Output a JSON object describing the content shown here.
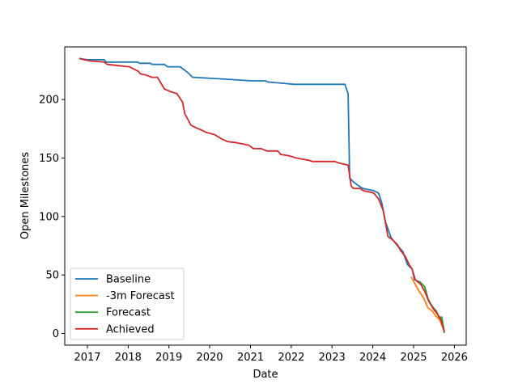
{
  "chart_data": {
    "type": "line",
    "title": "",
    "xlabel": "Date",
    "ylabel": "Open Milestones",
    "xlim": [
      "2016-06-12",
      "2026-04-17"
    ],
    "ylim": [
      -10,
      245
    ],
    "x_ticks": [
      "2017",
      "2018",
      "2019",
      "2020",
      "2021",
      "2022",
      "2023",
      "2024",
      "2025",
      "2026"
    ],
    "y_ticks": [
      0,
      50,
      100,
      150,
      200
    ],
    "grid": false,
    "legend_position": "lower-left",
    "series": [
      {
        "name": "Baseline",
        "color": "#1f77b4",
        "points": [
          [
            "2016-10-27",
            235
          ],
          [
            "2016-12-29",
            234
          ],
          [
            "2017-06-01",
            234
          ],
          [
            "2017-06-15",
            232
          ],
          [
            "2018-03-29",
            232
          ],
          [
            "2018-04-12",
            231
          ],
          [
            "2018-07-19",
            231
          ],
          [
            "2018-08-02",
            230
          ],
          [
            "2018-11-22",
            230
          ],
          [
            "2018-12-20",
            228
          ],
          [
            "2019-04-11",
            228
          ],
          [
            "2019-06-20",
            223
          ],
          [
            "2019-08-01",
            219
          ],
          [
            "2020-07-30",
            217
          ],
          [
            "2021-01-14",
            216
          ],
          [
            "2021-05-20",
            216
          ],
          [
            "2021-06-03",
            215
          ],
          [
            "2021-10-07",
            214
          ],
          [
            "2022-01-27",
            213
          ],
          [
            "2023-04-27",
            213
          ],
          [
            "2023-05-25",
            205
          ],
          [
            "2023-06-08",
            133
          ],
          [
            "2023-07-06",
            130
          ],
          [
            "2023-08-03",
            128
          ],
          [
            "2023-08-31",
            126
          ],
          [
            "2023-10-05",
            124
          ],
          [
            "2024-01-11",
            122
          ],
          [
            "2024-02-22",
            120
          ],
          [
            "2024-03-21",
            112
          ],
          [
            "2024-04-25",
            95
          ],
          [
            "2024-06-13",
            82
          ],
          [
            "2024-08-01",
            76
          ],
          [
            "2024-09-26",
            70
          ],
          [
            "2024-11-07",
            59
          ],
          [
            "2024-12-19",
            55
          ],
          [
            "2025-01-09",
            46
          ],
          [
            "2025-02-27",
            44
          ],
          [
            "2025-04-10",
            40
          ],
          [
            "2025-05-08",
            30
          ],
          [
            "2025-05-29",
            26
          ],
          [
            "2025-06-26",
            22
          ],
          [
            "2025-07-24",
            19
          ],
          [
            "2025-08-14",
            14
          ],
          [
            "2025-09-11",
            12
          ],
          [
            "2025-10-02",
            2
          ]
        ]
      },
      {
        "name": "-3m Forecast",
        "color": "#ff7f0e",
        "points": [
          [
            "2024-12-12",
            48
          ],
          [
            "2025-01-16",
            42
          ],
          [
            "2025-02-20",
            36
          ],
          [
            "2025-04-03",
            30
          ],
          [
            "2025-05-08",
            22
          ],
          [
            "2025-06-19",
            19
          ],
          [
            "2025-07-17",
            15
          ],
          [
            "2025-08-21",
            12
          ],
          [
            "2025-10-02",
            2
          ]
        ]
      },
      {
        "name": "Forecast",
        "color": "#2ca02c",
        "points": [
          [
            "2025-02-27",
            44
          ],
          [
            "2025-04-10",
            40
          ],
          [
            "2025-05-08",
            30
          ],
          [
            "2025-05-29",
            26
          ],
          [
            "2025-06-26",
            22
          ],
          [
            "2025-07-24",
            19
          ],
          [
            "2025-08-14",
            14
          ],
          [
            "2025-09-11",
            14
          ],
          [
            "2025-10-02",
            1
          ]
        ]
      },
      {
        "name": "Achieved",
        "color": "#d62728",
        "points": [
          [
            "2016-10-27",
            235
          ],
          [
            "2016-12-01",
            234
          ],
          [
            "2017-01-26",
            233
          ],
          [
            "2017-06-01",
            232
          ],
          [
            "2017-06-29",
            230
          ],
          [
            "2017-10-05",
            229
          ],
          [
            "2018-01-11",
            228
          ],
          [
            "2018-02-22",
            226
          ],
          [
            "2018-04-05",
            224
          ],
          [
            "2018-04-19",
            222
          ],
          [
            "2018-06-07",
            221
          ],
          [
            "2018-08-02",
            219
          ],
          [
            "2018-09-20",
            219
          ],
          [
            "2018-11-22",
            209
          ],
          [
            "2019-01-10",
            207
          ],
          [
            "2019-03-14",
            205
          ],
          [
            "2019-05-02",
            198
          ],
          [
            "2019-05-23",
            188
          ],
          [
            "2019-07-18",
            178
          ],
          [
            "2019-08-29",
            176
          ],
          [
            "2019-10-17",
            174
          ],
          [
            "2019-11-28",
            172
          ],
          [
            "2020-02-13",
            170
          ],
          [
            "2020-04-23",
            166
          ],
          [
            "2020-06-11",
            164
          ],
          [
            "2020-09-03",
            163
          ],
          [
            "2020-12-17",
            161
          ],
          [
            "2021-01-28",
            158
          ],
          [
            "2021-04-08",
            158
          ],
          [
            "2021-05-27",
            156
          ],
          [
            "2021-09-02",
            156
          ],
          [
            "2021-09-30",
            153
          ],
          [
            "2021-12-09",
            152
          ],
          [
            "2022-02-17",
            150
          ],
          [
            "2022-06-09",
            148
          ],
          [
            "2022-07-14",
            147
          ],
          [
            "2023-01-26",
            147
          ],
          [
            "2023-02-23",
            146
          ],
          [
            "2023-04-06",
            145
          ],
          [
            "2023-05-25",
            144
          ],
          [
            "2023-06-22",
            126
          ],
          [
            "2023-07-13",
            124
          ],
          [
            "2023-09-07",
            124
          ],
          [
            "2023-10-12",
            122
          ],
          [
            "2023-11-30",
            121
          ],
          [
            "2024-01-11",
            120
          ],
          [
            "2024-02-22",
            115
          ],
          [
            "2024-04-04",
            105
          ],
          [
            "2024-05-16",
            83
          ],
          [
            "2024-06-27",
            80
          ],
          [
            "2024-08-08",
            76
          ],
          [
            "2024-09-05",
            71
          ],
          [
            "2024-10-17",
            66
          ],
          [
            "2024-11-28",
            58
          ],
          [
            "2024-12-19",
            55
          ],
          [
            "2025-01-16",
            46
          ],
          [
            "2025-03-06",
            42
          ],
          [
            "2025-04-10",
            36
          ],
          [
            "2025-05-15",
            28
          ],
          [
            "2025-06-26",
            21
          ],
          [
            "2025-08-07",
            16
          ],
          [
            "2025-09-04",
            11
          ],
          [
            "2025-10-02",
            2
          ]
        ]
      }
    ]
  }
}
